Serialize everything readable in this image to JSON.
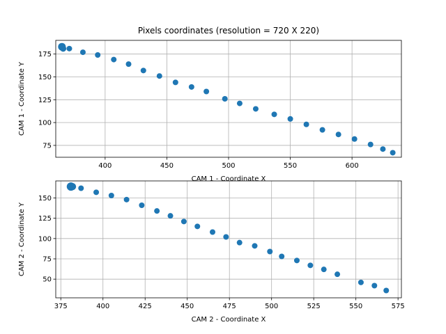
{
  "figure": {
    "title": "Pixels coordinates (resolution = 720 X 220)",
    "marker_color": "#1f77b4"
  },
  "chart_data": [
    {
      "type": "scatter",
      "title": "Pixels coordinates (resolution = 720 X 220)",
      "xlabel": "CAM 1 - Coordinate X",
      "ylabel": "CAM 1 - Coordinate Y",
      "xlim": [
        360,
        640
      ],
      "ylim": [
        62,
        190
      ],
      "xticks": [
        400,
        450,
        500,
        550,
        600
      ],
      "yticks": [
        75,
        100,
        125,
        150,
        175
      ],
      "grid": true,
      "series": [
        {
          "color": "#1f77b4",
          "x": [
            365,
            366,
            371,
            382,
            394,
            407,
            419,
            431,
            444,
            457,
            470,
            482,
            497,
            509,
            522,
            537,
            550,
            563,
            576,
            589,
            602,
            615,
            625,
            633
          ],
          "y": [
            183,
            181,
            181,
            177,
            174,
            169,
            164,
            157,
            151,
            144,
            139,
            134,
            126,
            121,
            115,
            109,
            104,
            98,
            92,
            87,
            82,
            76,
            71,
            67
          ],
          "sizes": [
            9,
            7,
            6,
            6,
            6,
            6,
            6,
            6,
            6,
            6,
            6,
            6,
            6,
            6,
            6,
            6,
            6,
            6,
            6,
            6,
            6,
            6,
            6,
            6
          ]
        }
      ]
    },
    {
      "type": "scatter",
      "title": "",
      "xlabel": "CAM 2 - Coordinate X",
      "ylabel": "CAM 2 - Coordinate Y",
      "xlim": [
        372,
        577
      ],
      "ylim": [
        27,
        171
      ],
      "xticks": [
        375,
        400,
        425,
        450,
        475,
        500,
        525,
        550,
        575
      ],
      "yticks": [
        50,
        75,
        100,
        125,
        150
      ],
      "grid": true,
      "series": [
        {
          "color": "#1f77b4",
          "x": [
            381,
            382,
            387,
            396,
            405,
            414,
            423,
            432,
            440,
            448,
            456,
            465,
            473,
            481,
            490,
            499,
            506,
            515,
            523,
            531,
            539,
            553,
            561,
            568
          ],
          "y": [
            164,
            164,
            162,
            157,
            153,
            148,
            141,
            134,
            128,
            121,
            115,
            108,
            102,
            95,
            91,
            84,
            78,
            73,
            67,
            62,
            56,
            46,
            42,
            36
          ],
          "sizes": [
            10,
            8,
            6,
            6,
            6,
            6,
            6,
            6,
            6,
            6,
            6,
            6,
            6,
            6,
            6,
            6,
            6,
            6,
            6,
            6,
            6,
            6,
            6,
            6
          ]
        }
      ]
    }
  ]
}
